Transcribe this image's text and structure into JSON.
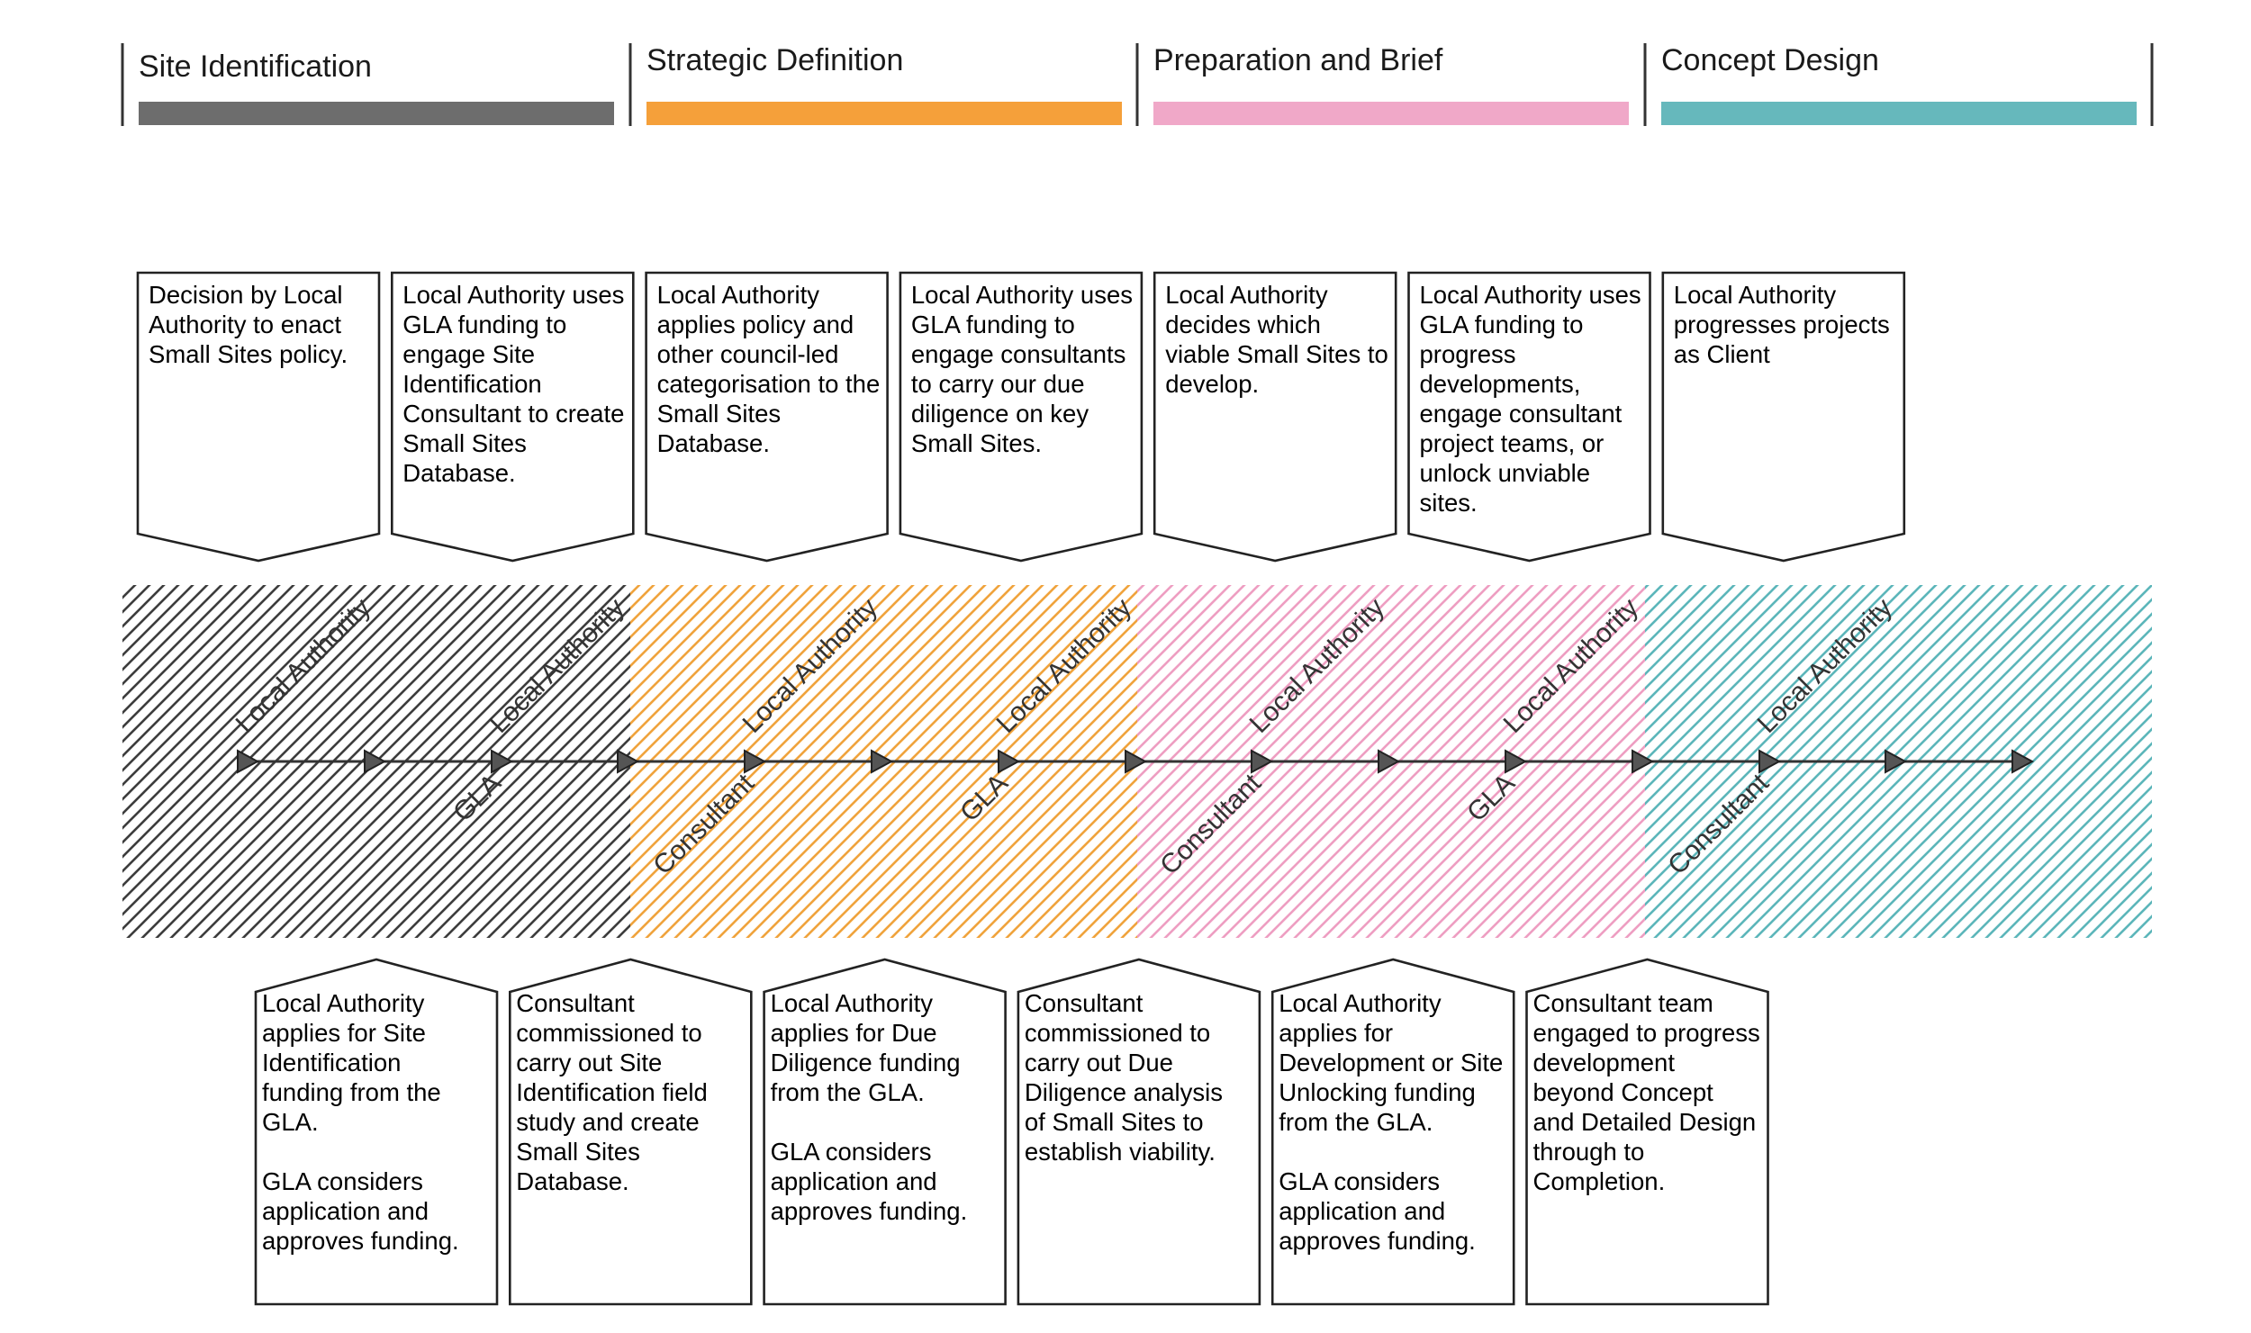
{
  "stages": [
    {
      "title": "Site Identification",
      "color": "#6d6d6d",
      "pattern_color": "#3d3d3d"
    },
    {
      "title": "Strategic Definition",
      "color": "#f5a03a",
      "pattern_color": "#f0a33c"
    },
    {
      "title": "Preparation and Brief",
      "color": "#f0a8c8",
      "pattern_color": "#ee9ec2"
    },
    {
      "title": "Concept Design",
      "color": "#66b8bc",
      "pattern_color": "#5cb6ba"
    }
  ],
  "top_boxes": [
    {
      "lines": [
        "Decision by Local",
        "Authority to enact",
        "Small Sites policy."
      ]
    },
    {
      "lines": [
        "Local Authority uses",
        "GLA funding to",
        "engage Site",
        "Identification",
        "Consultant to create",
        "Small Sites",
        "Database."
      ]
    },
    {
      "lines": [
        "Local Authority",
        "applies policy and",
        "other council-led",
        "categorisation to the",
        "Small Sites",
        "Database."
      ]
    },
    {
      "lines": [
        "Local Authority uses",
        "GLA funding to",
        "engage consultants",
        "to carry our due",
        "diligence on key",
        "Small Sites."
      ]
    },
    {
      "lines": [
        "Local Authority",
        "decides which",
        "viable Small Sites to",
        "develop."
      ]
    },
    {
      "lines": [
        "Local Authority uses",
        "GLA funding to",
        "progress",
        "developments,",
        "engage consultant",
        "project teams, or",
        "unlock unviable",
        "sites."
      ]
    },
    {
      "lines": [
        "Local Authority",
        "progresses projects",
        "as Client"
      ]
    }
  ],
  "bottom_boxes": [
    {
      "lines": [
        "Local Authority",
        "applies for Site",
        "Identification",
        "funding from the",
        "GLA.",
        "",
        "GLA considers",
        "application and",
        "approves funding."
      ]
    },
    {
      "lines": [
        "Consultant",
        "commissioned to",
        "carry out Site",
        "Identification field",
        "study and create",
        "Small Sites",
        "Database."
      ]
    },
    {
      "lines": [
        "Local Authority",
        "applies for Due",
        "Diligence funding",
        "from the GLA.",
        "",
        "GLA considers",
        "application and",
        "approves funding."
      ]
    },
    {
      "lines": [
        "Consultant",
        "commissioned to",
        "carry out Due",
        "Diligence analysis",
        "of Small Sites to",
        "establish viability."
      ]
    },
    {
      "lines": [
        "Local Authority",
        "applies for",
        "Development or Site",
        "Unlocking funding",
        "from the GLA.",
        "",
        "GLA considers",
        "application and",
        "approves funding."
      ]
    },
    {
      "lines": [
        "Consultant team",
        "engaged to progress",
        "development",
        "beyond Concept",
        "and Detailed Design",
        "through to",
        "Completion."
      ]
    }
  ],
  "timeline": {
    "above_labels": [
      "Local Authority",
      "Local Authority",
      "Local Authority",
      "Local Authority",
      "Local Authority",
      "Local Authority",
      "Local Authority"
    ],
    "below_labels": [
      "GLA",
      "Consultant",
      "GLA",
      "Consultant",
      "GLA",
      "Consultant"
    ]
  }
}
